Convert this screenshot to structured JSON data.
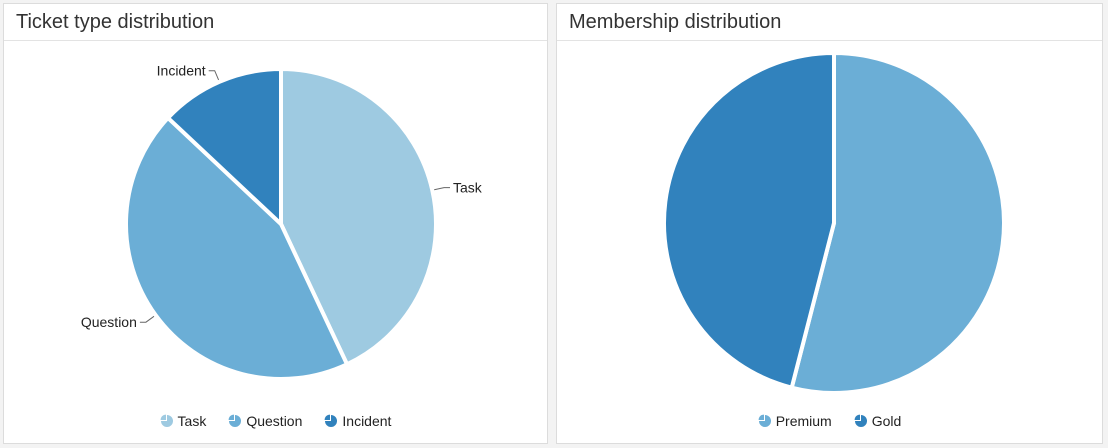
{
  "panels": [
    {
      "title": "Ticket type distribution",
      "chart_data": {
        "type": "pie",
        "categories": [
          "Task",
          "Question",
          "Incident"
        ],
        "values": [
          43,
          44,
          13
        ],
        "colors": [
          "#9ecae1",
          "#6baed6",
          "#3182bd"
        ],
        "start_angle_deg": 0,
        "labels_outside": true,
        "legend": "bottom"
      }
    },
    {
      "title": "Membership distribution",
      "chart_data": {
        "type": "pie",
        "categories": [
          "Premium",
          "Gold"
        ],
        "values": [
          54,
          46
        ],
        "colors": [
          "#6baed6",
          "#3182bd"
        ],
        "start_angle_deg": 0,
        "labels_outside": false,
        "legend": "bottom"
      }
    }
  ]
}
